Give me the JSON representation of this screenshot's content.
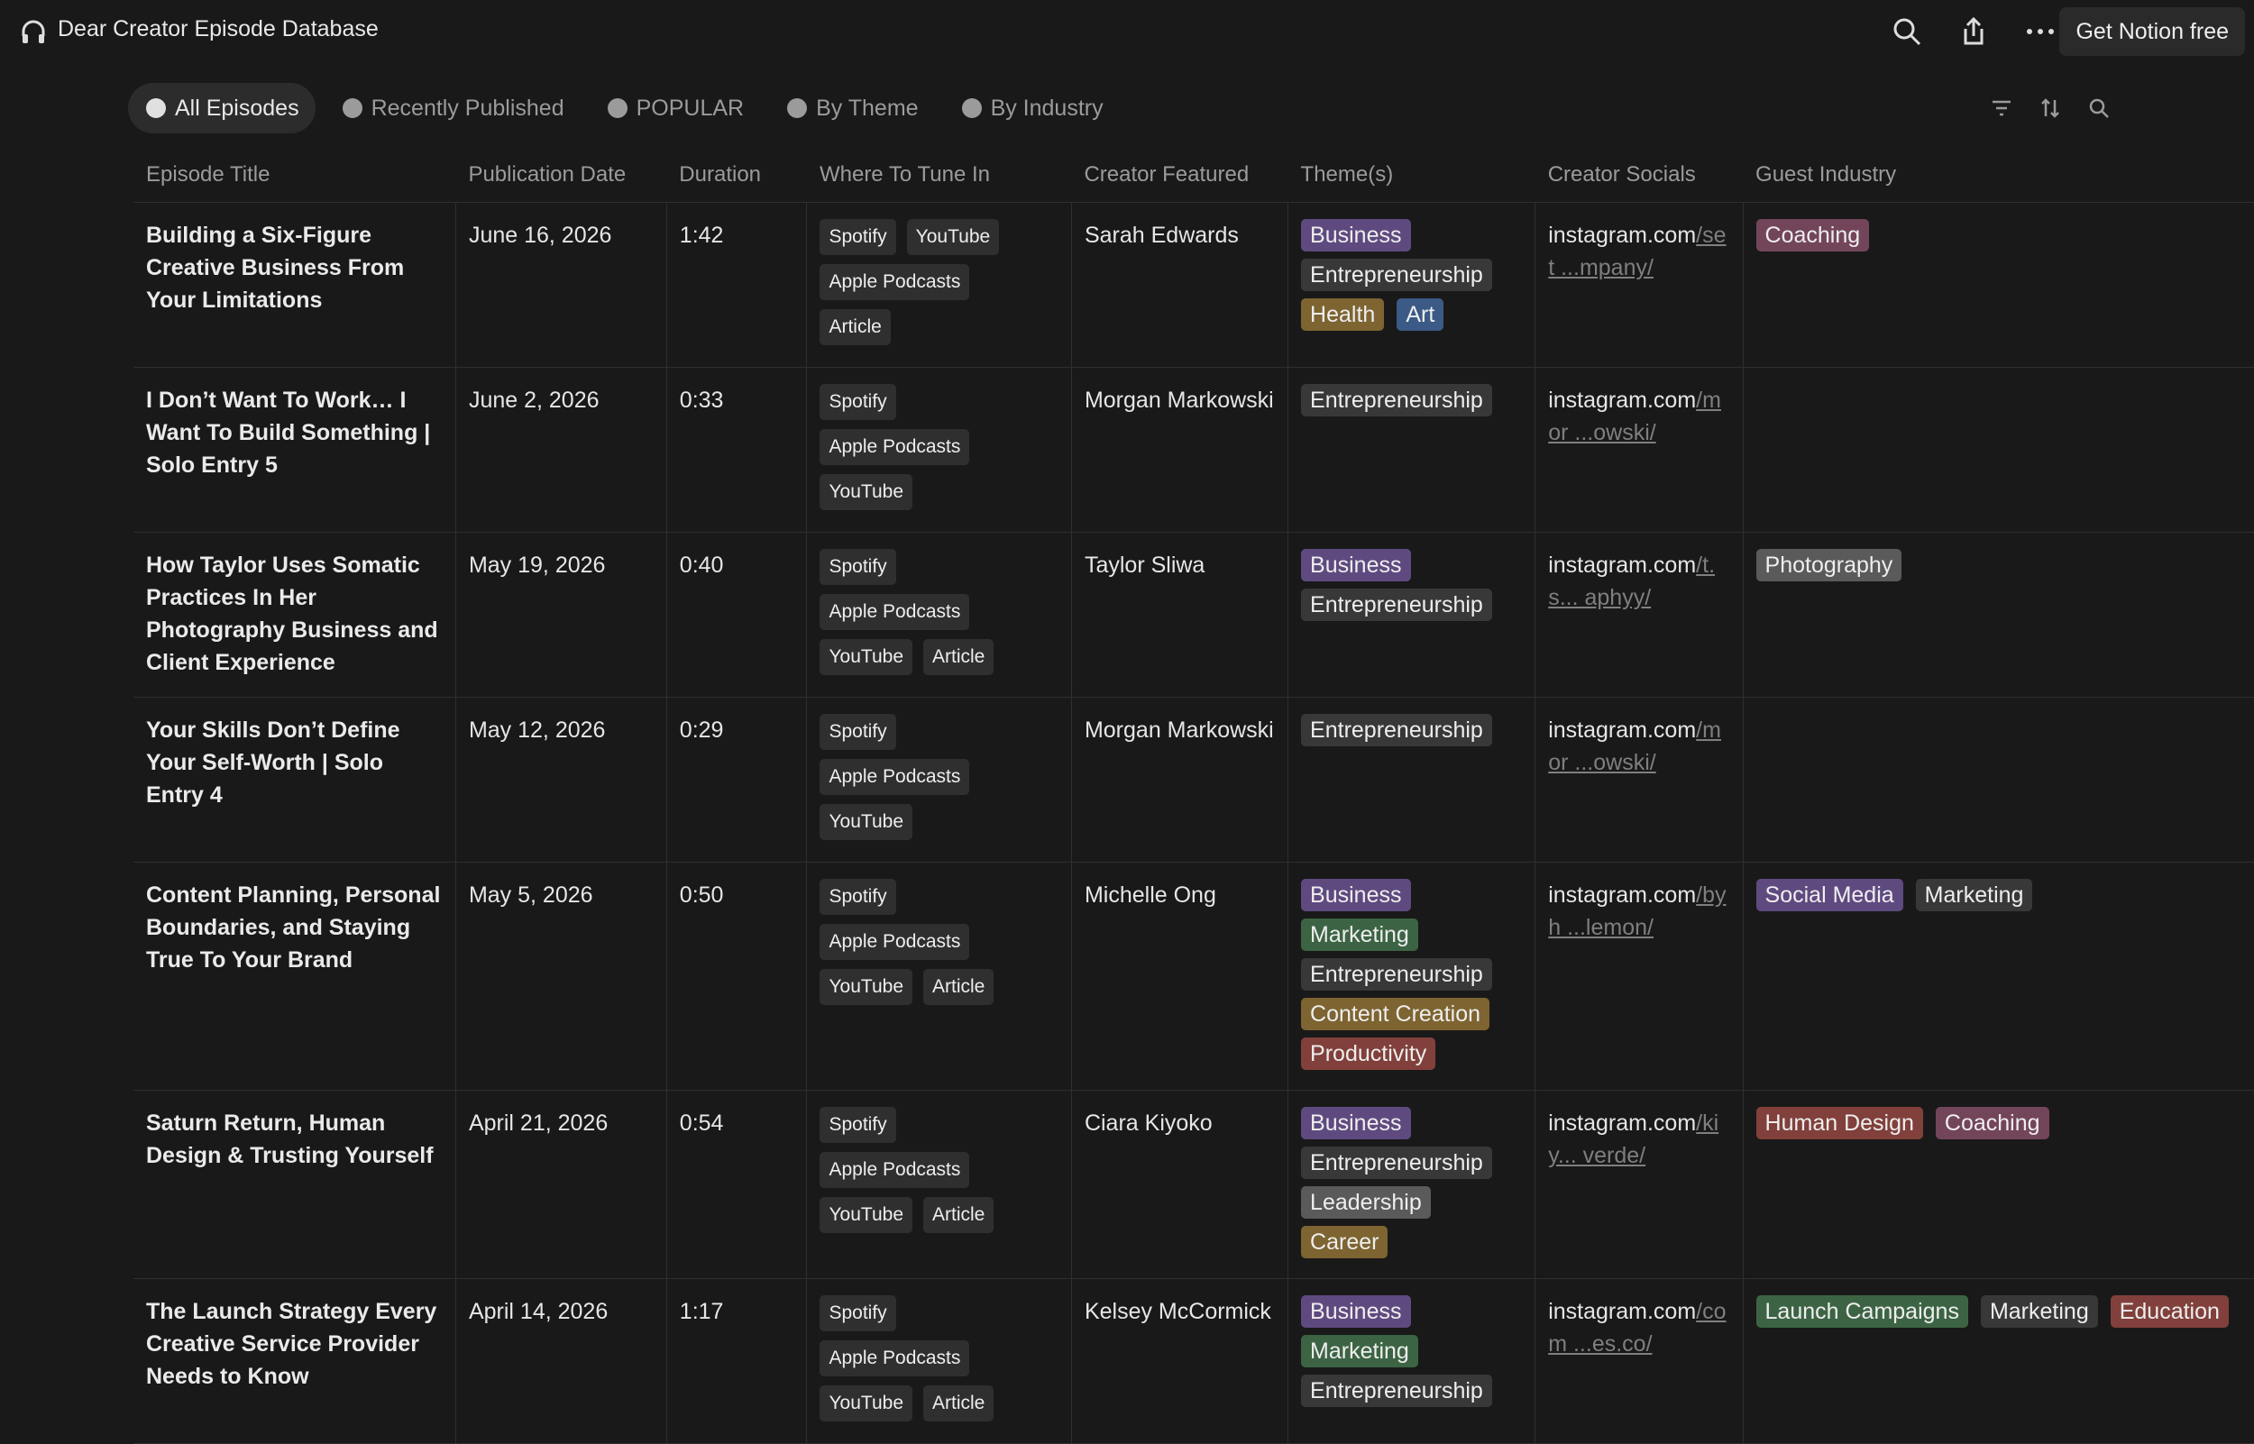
{
  "header": {
    "title": "Dear Creator Episode Database",
    "button": "Get Notion free"
  },
  "views": [
    "All Episodes",
    "Recently Published",
    "POPULAR",
    "By Theme",
    "By Industry"
  ],
  "table": {
    "columns": [
      "Episode Title",
      "Publication Date",
      "Duration",
      "Where To Tune In",
      "Creator Featured",
      "Theme(s)",
      "Creator Socials",
      "Guest Industry"
    ],
    "rows": [
      {
        "title": "Building a Six-Figure Creative Business From Your Limitations",
        "date": "June 16, 2026",
        "duration": "1:42",
        "tune_in": [
          "Spotify",
          "YouTube",
          "Apple Podcasts",
          "Article"
        ],
        "creator": "Sarah Edwards",
        "themes": [
          {
            "label": "Business",
            "color": "#5f4a80"
          },
          {
            "label": "Entrepreneurship",
            "color": "#383838"
          },
          {
            "label": "Health",
            "color": "#7d6431"
          },
          {
            "label": "Art",
            "color": "#3b5a86"
          }
        ],
        "socials": {
          "base": "instagram.com",
          "rest": "/set ...mpany/"
        },
        "industry": [
          {
            "label": "Coaching",
            "color": "#73455b"
          }
        ]
      },
      {
        "title": "I Don’t Want To Work… I Want To Build Something | Solo Entry 5",
        "date": "June 2, 2026",
        "duration": "0:33",
        "tune_in": [
          "Spotify",
          "Apple Podcasts",
          "YouTube"
        ],
        "creator": "Morgan Markowski",
        "themes": [
          {
            "label": "Entrepreneurship",
            "color": "#383838"
          }
        ],
        "socials": {
          "base": "instagram.com",
          "rest": "/mor ...owski/"
        },
        "industry": []
      },
      {
        "title": "How Taylor Uses Somatic Practices In Her Photography Business and Client Experience",
        "date": "May 19, 2026",
        "duration": "0:40",
        "tune_in": [
          "Spotify",
          "Apple Podcasts",
          "YouTube",
          "Article"
        ],
        "creator": "Taylor Sliwa",
        "themes": [
          {
            "label": "Business",
            "color": "#5f4a80"
          },
          {
            "label": "Entrepreneurship",
            "color": "#383838"
          }
        ],
        "socials": {
          "base": "instagram.com",
          "rest": "/t.s... aphyy/"
        },
        "industry": [
          {
            "label": "Photography",
            "color": "#5a5a5a"
          }
        ]
      },
      {
        "title": "Your Skills Don’t Define Your Self-Worth | Solo Entry 4",
        "date": "May 12, 2026",
        "duration": "0:29",
        "tune_in": [
          "Spotify",
          "Apple Podcasts",
          "YouTube"
        ],
        "creator": "Morgan Markowski",
        "themes": [
          {
            "label": "Entrepreneurship",
            "color": "#383838"
          }
        ],
        "socials": {
          "base": "instagram.com",
          "rest": "/mor ...owski/"
        },
        "industry": []
      },
      {
        "title": "Content Planning, Personal Boundaries, and Staying True To Your Brand",
        "date": "May 5, 2026",
        "duration": "0:50",
        "tune_in": [
          "Spotify",
          "Apple Podcasts",
          "YouTube",
          "Article"
        ],
        "creator": "Michelle Ong",
        "themes": [
          {
            "label": "Business",
            "color": "#5f4a80"
          },
          {
            "label": "Marketing",
            "color": "#3c6444"
          },
          {
            "label": "Entrepreneurship",
            "color": "#383838"
          },
          {
            "label": "Content Creation",
            "color": "#7d6431"
          },
          {
            "label": "Productivity",
            "color": "#81403b"
          }
        ],
        "socials": {
          "base": "instagram.com",
          "rest": "/byh ...lemon/"
        },
        "industry": [
          {
            "label": "Social Media",
            "color": "#5f4a80"
          },
          {
            "label": "Marketing",
            "color": "#383838"
          }
        ]
      },
      {
        "title": "Saturn Return, Human Design & Trusting Yourself",
        "date": "April 21, 2026",
        "duration": "0:54",
        "tune_in": [
          "Spotify",
          "Apple Podcasts",
          "YouTube",
          "Article"
        ],
        "creator": "Ciara Kiyoko",
        "themes": [
          {
            "label": "Business",
            "color": "#5f4a80"
          },
          {
            "label": "Entrepreneurship",
            "color": "#383838"
          },
          {
            "label": "Leadership",
            "color": "#5a5a5a"
          },
          {
            "label": "Career",
            "color": "#7d6431"
          }
        ],
        "socials": {
          "base": "instagram.com",
          "rest": "/kiy... verde/"
        },
        "industry": [
          {
            "label": "Human Design",
            "color": "#81403b"
          },
          {
            "label": "Coaching",
            "color": "#73455b"
          }
        ]
      },
      {
        "title": "The Launch Strategy Every Creative Service Provider Needs to Know",
        "date": "April 14, 2026",
        "duration": "1:17",
        "tune_in": [
          "Spotify",
          "Apple Podcasts",
          "YouTube",
          "Article"
        ],
        "creator": "Kelsey McCormick",
        "themes": [
          {
            "label": "Business",
            "color": "#5f4a80"
          },
          {
            "label": "Marketing",
            "color": "#3c6444"
          },
          {
            "label": "Entrepreneurship",
            "color": "#383838"
          }
        ],
        "socials": {
          "base": "instagram.com",
          "rest": "/com ...es.co/"
        },
        "industry": [
          {
            "label": "Launch Campaigns",
            "color": "#3c6444"
          },
          {
            "label": "Marketing",
            "color": "#383838"
          },
          {
            "label": "Education",
            "color": "#81403b"
          }
        ]
      }
    ]
  }
}
